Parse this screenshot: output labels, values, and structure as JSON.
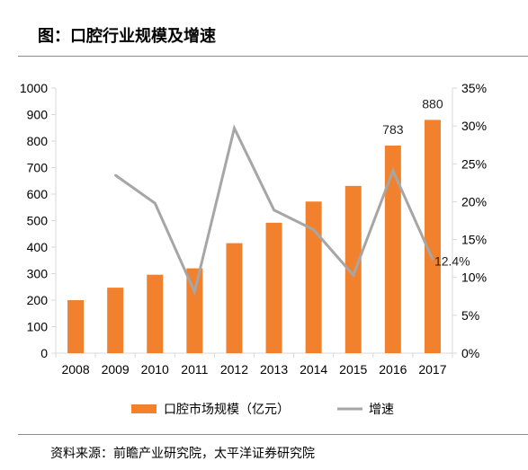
{
  "header": {
    "title": "图：口腔行业规模及增速"
  },
  "footer": {
    "source": "资料来源：前瞻产业研究院，太平洋证券研究院"
  },
  "colors": {
    "bar": "#F2812D",
    "line": "#A6A6A6",
    "axis": "#D9D9D9"
  },
  "chart_data": {
    "type": "bar",
    "categories": [
      "2008",
      "2009",
      "2010",
      "2011",
      "2012",
      "2013",
      "2014",
      "2015",
      "2016",
      "2017"
    ],
    "series": [
      {
        "name": "口腔市场规模（亿元）",
        "type": "bar",
        "axis": "left",
        "values": [
          200,
          247,
          296,
          320,
          415,
          492,
          572,
          631,
          783,
          880
        ]
      },
      {
        "name": "增速",
        "type": "line",
        "axis": "right",
        "values": [
          null,
          23.5,
          19.8,
          8.1,
          29.7,
          18.9,
          16.3,
          10.3,
          24.1,
          12.4
        ]
      }
    ],
    "left_axis": {
      "min": 0,
      "max": 1000,
      "step": 100,
      "ticks": [
        "0",
        "100",
        "200",
        "300",
        "400",
        "500",
        "600",
        "700",
        "800",
        "900",
        "1000"
      ]
    },
    "right_axis": {
      "min": 0,
      "max": 35,
      "step": 5,
      "ticks": [
        "0%",
        "5%",
        "10%",
        "15%",
        "20%",
        "25%",
        "30%",
        "35%"
      ]
    },
    "data_labels": [
      {
        "category": "2016",
        "series": 0,
        "text": "783"
      },
      {
        "category": "2017",
        "series": 0,
        "text": "880"
      },
      {
        "category": "2017",
        "series": 1,
        "text": "12.4%"
      }
    ],
    "legend": {
      "position": "bottom",
      "items": [
        {
          "label": "口腔市场规模（亿元）",
          "kind": "bar"
        },
        {
          "label": "增速",
          "kind": "line"
        }
      ]
    },
    "grid": false
  }
}
